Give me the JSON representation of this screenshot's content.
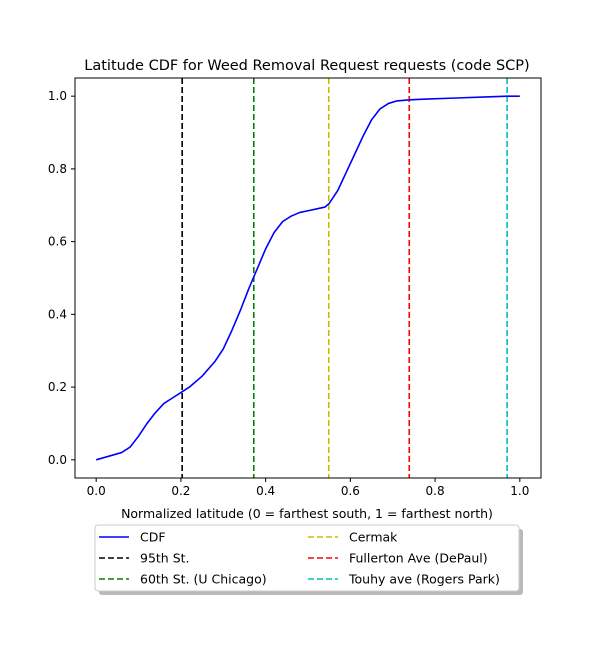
{
  "chart_data": {
    "type": "line",
    "title": "Latitude CDF for Weed Removal Request  requests (code SCP)",
    "xlabel": "Normalized latitude (0 = farthest south, 1 = farthest north)",
    "ylabel": "",
    "xlim": [
      -0.05,
      1.05
    ],
    "ylim": [
      -0.05,
      1.05
    ],
    "x_ticks": [
      "0.0",
      "0.2",
      "0.4",
      "0.6",
      "0.8",
      "1.0"
    ],
    "y_ticks": [
      "0.0",
      "0.2",
      "0.4",
      "0.6",
      "0.8",
      "1.0"
    ],
    "grid": false,
    "legend_position": "below plot, 2 columns",
    "series": [
      {
        "name": "CDF",
        "color": "#0000ff",
        "style": "solid",
        "x": [
          0.0,
          0.03,
          0.06,
          0.08,
          0.1,
          0.12,
          0.14,
          0.16,
          0.18,
          0.2,
          0.22,
          0.25,
          0.28,
          0.3,
          0.32,
          0.34,
          0.36,
          0.38,
          0.4,
          0.42,
          0.44,
          0.46,
          0.48,
          0.5,
          0.52,
          0.54,
          0.55,
          0.57,
          0.59,
          0.61,
          0.63,
          0.65,
          0.67,
          0.69,
          0.71,
          0.74,
          0.78,
          0.85,
          0.92,
          0.97,
          1.0
        ],
        "y": [
          0.0,
          0.01,
          0.02,
          0.035,
          0.065,
          0.1,
          0.13,
          0.155,
          0.17,
          0.185,
          0.2,
          0.23,
          0.27,
          0.305,
          0.355,
          0.41,
          0.47,
          0.525,
          0.58,
          0.625,
          0.655,
          0.67,
          0.68,
          0.685,
          0.69,
          0.695,
          0.705,
          0.74,
          0.79,
          0.84,
          0.89,
          0.935,
          0.965,
          0.98,
          0.987,
          0.99,
          0.992,
          0.995,
          0.998,
          1.0,
          1.0
        ]
      }
    ],
    "markers": [
      {
        "name": "95th St.",
        "x": 0.203,
        "color": "#000000",
        "style": "dashed"
      },
      {
        "name": "60th St. (U Chicago)",
        "x": 0.372,
        "color": "#008000",
        "style": "dashed"
      },
      {
        "name": "Cermak",
        "x": 0.549,
        "color": "#bfbf00",
        "style": "dashed"
      },
      {
        "name": "Fullerton Ave (DePaul)",
        "x": 0.739,
        "color": "#ff0000",
        "style": "dashed"
      },
      {
        "name": "Touhy ave (Rogers Park)",
        "x": 0.97,
        "color": "#00bfbf",
        "style": "dashed"
      }
    ]
  }
}
